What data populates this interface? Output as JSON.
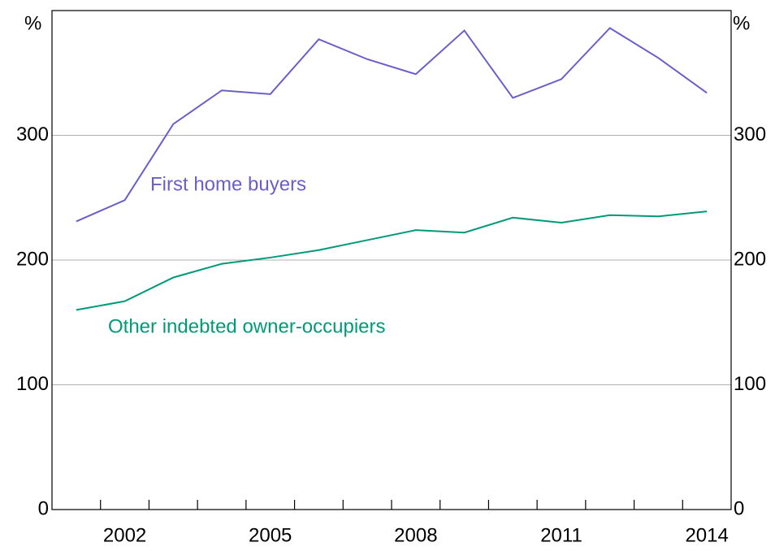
{
  "chart_data": {
    "type": "line",
    "categories": [
      null,
      "2002",
      null,
      null,
      "2005",
      null,
      null,
      "2008",
      null,
      null,
      "2011",
      null,
      null,
      "2014"
    ],
    "series": [
      {
        "name": "First home buyers",
        "color": "#6a5fc8",
        "values": [
          231,
          248,
          309,
          336,
          333,
          377,
          361,
          349,
          384,
          330,
          345,
          386,
          362,
          334
        ]
      },
      {
        "name": "Other indebted owner-occupiers",
        "color": "#009a78",
        "values": [
          160,
          167,
          186,
          197,
          202,
          208,
          216,
          224,
          222,
          234,
          230,
          236,
          235,
          239
        ]
      }
    ],
    "ylabel": "%",
    "y2label": "%",
    "ylim": [
      0,
      400
    ],
    "yticks": [
      0,
      100,
      200,
      300
    ],
    "y2lim": [
      0,
      400
    ],
    "y2ticks": [
      0,
      100,
      200,
      300
    ],
    "grid": true
  }
}
